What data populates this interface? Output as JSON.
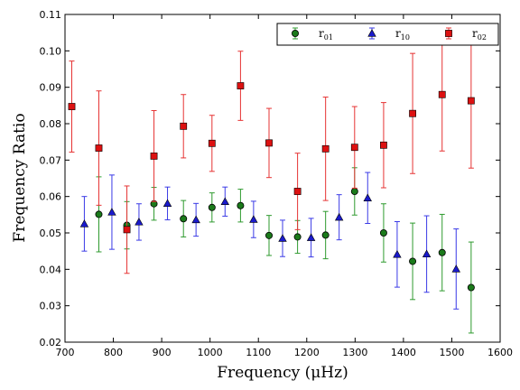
{
  "chart_data": {
    "type": "scatter",
    "xlabel": "Frequency (μHz)",
    "ylabel": "Frequency Ratio",
    "xlim": [
      700,
      1600
    ],
    "ylim": [
      0.02,
      0.11
    ],
    "x_ticks": [
      700,
      800,
      900,
      1000,
      1100,
      1200,
      1300,
      1400,
      1500,
      1600
    ],
    "y_ticks": [
      0.02,
      0.03,
      0.04,
      0.05,
      0.06,
      0.07,
      0.08,
      0.09,
      0.1,
      0.11
    ],
    "x_tick_labels": [
      "700",
      "800",
      "900",
      "1000",
      "1100",
      "1200",
      "1300",
      "1400",
      "1500",
      "1600"
    ],
    "y_tick_labels": [
      "0.02",
      "0.03",
      "0.04",
      "0.05",
      "0.06",
      "0.07",
      "0.08",
      "0.09",
      "0.10",
      "0.11"
    ],
    "grid": false,
    "legend_position": "top-right",
    "series": [
      {
        "name": "r01",
        "label_main": "r",
        "label_sub": "01",
        "marker": "circle",
        "color": "#1a7a1a",
        "errcolor": "#2e9a2e",
        "points": [
          {
            "x": 770,
            "y": 0.0551,
            "err": 0.0103
          },
          {
            "x": 828,
            "y": 0.0521,
            "err": 0.0065
          },
          {
            "x": 884,
            "y": 0.058,
            "err": 0.0045
          },
          {
            "x": 945,
            "y": 0.0539,
            "err": 0.005
          },
          {
            "x": 1004,
            "y": 0.057,
            "err": 0.004
          },
          {
            "x": 1063,
            "y": 0.0575,
            "err": 0.0045
          },
          {
            "x": 1122,
            "y": 0.0493,
            "err": 0.0055
          },
          {
            "x": 1181,
            "y": 0.0489,
            "err": 0.0045
          },
          {
            "x": 1239,
            "y": 0.0494,
            "err": 0.0065
          },
          {
            "x": 1299,
            "y": 0.0614,
            "err": 0.0065
          },
          {
            "x": 1359,
            "y": 0.05,
            "err": 0.008
          },
          {
            "x": 1419,
            "y": 0.0422,
            "err": 0.0105
          },
          {
            "x": 1480,
            "y": 0.0446,
            "err": 0.0105
          },
          {
            "x": 1540,
            "y": 0.035,
            "err": 0.0125
          }
        ]
      },
      {
        "name": "r10",
        "label_main": "r",
        "label_sub": "10",
        "marker": "triangle",
        "color": "#1a1acc",
        "errcolor": "#3a3ae6",
        "points": [
          {
            "x": 740,
            "y": 0.0525,
            "err": 0.0075
          },
          {
            "x": 797,
            "y": 0.0557,
            "err": 0.0102
          },
          {
            "x": 853,
            "y": 0.053,
            "err": 0.005
          },
          {
            "x": 912,
            "y": 0.0581,
            "err": 0.0045
          },
          {
            "x": 971,
            "y": 0.0536,
            "err": 0.0045
          },
          {
            "x": 1031,
            "y": 0.0586,
            "err": 0.004
          },
          {
            "x": 1090,
            "y": 0.0537,
            "err": 0.005
          },
          {
            "x": 1150,
            "y": 0.0485,
            "err": 0.005
          },
          {
            "x": 1209,
            "y": 0.0487,
            "err": 0.0053
          },
          {
            "x": 1267,
            "y": 0.0543,
            "err": 0.0062
          },
          {
            "x": 1326,
            "y": 0.0596,
            "err": 0.007
          },
          {
            "x": 1387,
            "y": 0.0441,
            "err": 0.009
          },
          {
            "x": 1448,
            "y": 0.0442,
            "err": 0.0105
          },
          {
            "x": 1509,
            "y": 0.0401,
            "err": 0.011
          }
        ]
      },
      {
        "name": "r02",
        "label_main": "r",
        "label_sub": "02",
        "marker": "square",
        "color": "#dd1111",
        "errcolor": "#e63333",
        "points": [
          {
            "x": 714,
            "y": 0.0847,
            "err": 0.0125
          },
          {
            "x": 770,
            "y": 0.0733,
            "err": 0.0157
          },
          {
            "x": 828,
            "y": 0.0509,
            "err": 0.012
          },
          {
            "x": 884,
            "y": 0.0711,
            "err": 0.0125
          },
          {
            "x": 945,
            "y": 0.0793,
            "err": 0.0087
          },
          {
            "x": 1004,
            "y": 0.0746,
            "err": 0.0077
          },
          {
            "x": 1063,
            "y": 0.0904,
            "err": 0.0095
          },
          {
            "x": 1122,
            "y": 0.0747,
            "err": 0.0095
          },
          {
            "x": 1181,
            "y": 0.0614,
            "err": 0.0105
          },
          {
            "x": 1239,
            "y": 0.0731,
            "err": 0.0142
          },
          {
            "x": 1299,
            "y": 0.0735,
            "err": 0.0112
          },
          {
            "x": 1359,
            "y": 0.0741,
            "err": 0.0117
          },
          {
            "x": 1419,
            "y": 0.0828,
            "err": 0.0165
          },
          {
            "x": 1480,
            "y": 0.088,
            "err": 0.0155
          },
          {
            "x": 1540,
            "y": 0.0863,
            "err": 0.0185
          }
        ]
      }
    ]
  }
}
